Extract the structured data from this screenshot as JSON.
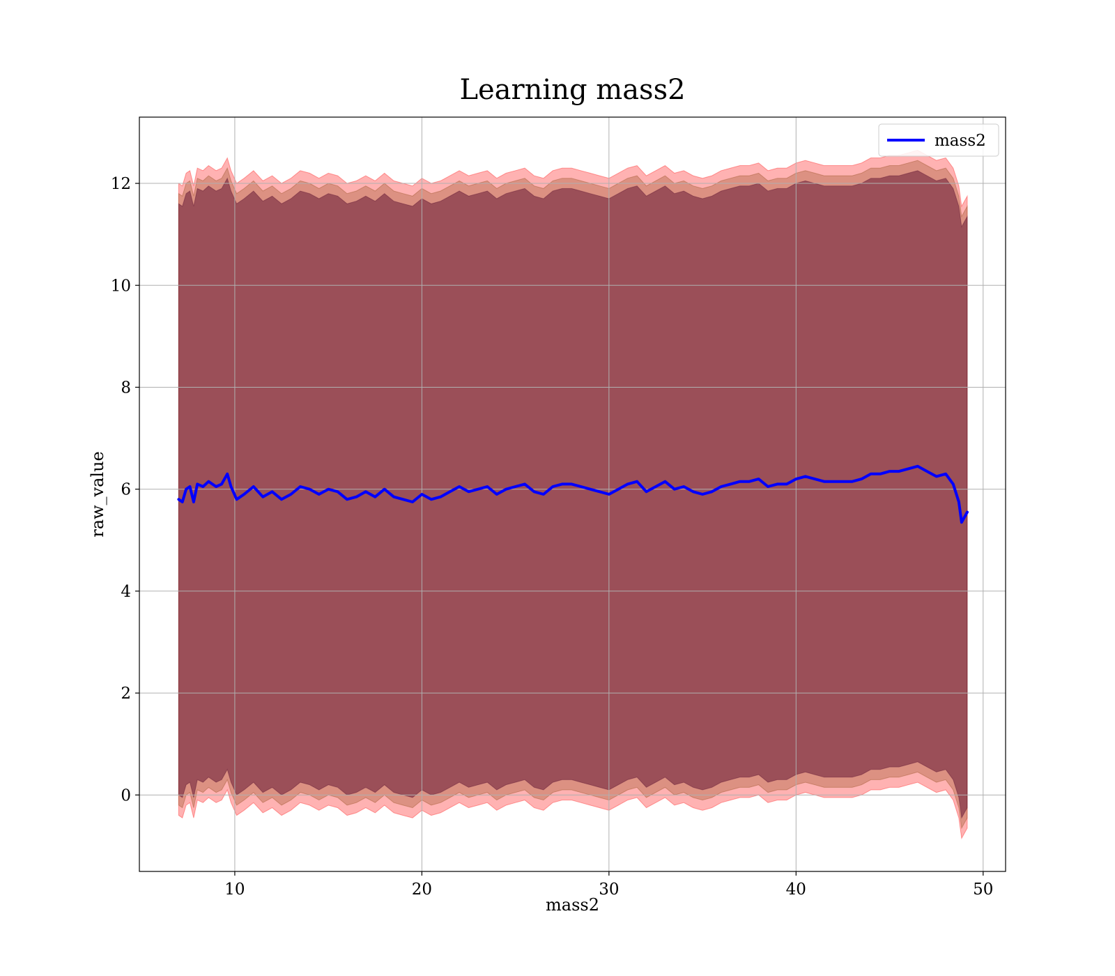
{
  "chart_data": {
    "type": "line",
    "title": "Learning mass2",
    "xlabel": "mass2",
    "ylabel": "raw_value",
    "xlim": [
      4.9,
      51.2
    ],
    "ylim": [
      -1.5,
      13.3
    ],
    "xticks": [
      10,
      20,
      30,
      40,
      50
    ],
    "yticks": [
      0,
      2,
      4,
      6,
      8,
      10,
      12
    ],
    "grid": true,
    "legend": {
      "position": "upper right",
      "entries": [
        "mass2"
      ]
    },
    "colors": {
      "line": "#0000ff",
      "band_outer": "#ff0000",
      "band_middle": "#8b4513",
      "band_inner": "#4b0026",
      "grid": "#b0b0b0",
      "axes": "#000000"
    },
    "series": [
      {
        "name": "mass2",
        "x": [
          7.0,
          7.2,
          7.4,
          7.6,
          7.8,
          8.0,
          8.3,
          8.6,
          9.0,
          9.3,
          9.6,
          9.8,
          10.1,
          10.5,
          11.0,
          11.5,
          12.0,
          12.5,
          13.0,
          13.5,
          14.0,
          14.5,
          15.0,
          15.5,
          16.0,
          16.5,
          17.0,
          17.5,
          18.0,
          18.5,
          19.0,
          19.5,
          20.0,
          20.5,
          21.0,
          21.5,
          22.0,
          22.5,
          23.0,
          23.5,
          24.0,
          24.5,
          25.0,
          25.5,
          26.0,
          26.5,
          27.0,
          27.5,
          28.0,
          28.5,
          29.0,
          29.5,
          30.0,
          30.5,
          31.0,
          31.5,
          32.0,
          32.5,
          33.0,
          33.5,
          34.0,
          34.5,
          35.0,
          35.5,
          36.0,
          36.5,
          37.0,
          37.5,
          38.0,
          38.5,
          39.0,
          39.5,
          40.0,
          40.5,
          41.0,
          41.5,
          42.0,
          42.5,
          43.0,
          43.5,
          44.0,
          44.5,
          45.0,
          45.5,
          46.0,
          46.5,
          47.0,
          47.5,
          48.0,
          48.4,
          48.7,
          48.85,
          49.0,
          49.15
        ],
        "values": [
          5.8,
          5.75,
          6.0,
          6.05,
          5.75,
          6.1,
          6.05,
          6.15,
          6.05,
          6.1,
          6.3,
          6.05,
          5.8,
          5.9,
          6.05,
          5.85,
          5.95,
          5.8,
          5.9,
          6.05,
          6.0,
          5.9,
          6.0,
          5.95,
          5.8,
          5.85,
          5.95,
          5.85,
          6.0,
          5.85,
          5.8,
          5.75,
          5.9,
          5.8,
          5.85,
          5.95,
          6.05,
          5.95,
          6.0,
          6.05,
          5.9,
          6.0,
          6.05,
          6.1,
          5.95,
          5.9,
          6.05,
          6.1,
          6.1,
          6.05,
          6.0,
          5.95,
          5.9,
          6.0,
          6.1,
          6.15,
          5.95,
          6.05,
          6.15,
          6.0,
          6.05,
          5.95,
          5.9,
          5.95,
          6.05,
          6.1,
          6.15,
          6.15,
          6.2,
          6.05,
          6.1,
          6.1,
          6.2,
          6.25,
          6.2,
          6.15,
          6.15,
          6.15,
          6.15,
          6.2,
          6.3,
          6.3,
          6.35,
          6.35,
          6.4,
          6.45,
          6.35,
          6.25,
          6.3,
          6.1,
          5.75,
          5.35,
          5.45,
          5.55
        ]
      }
    ],
    "bands": [
      {
        "name": "outer",
        "offset_upper": 6.2,
        "offset_lower": 6.2,
        "opacity": 0.3
      },
      {
        "name": "middle",
        "offset_upper": 6.0,
        "offset_lower": 6.0,
        "opacity": 0.3
      },
      {
        "name": "inner",
        "offset_upper": 5.8,
        "offset_lower": 5.8,
        "opacity": 0.45
      }
    ]
  }
}
